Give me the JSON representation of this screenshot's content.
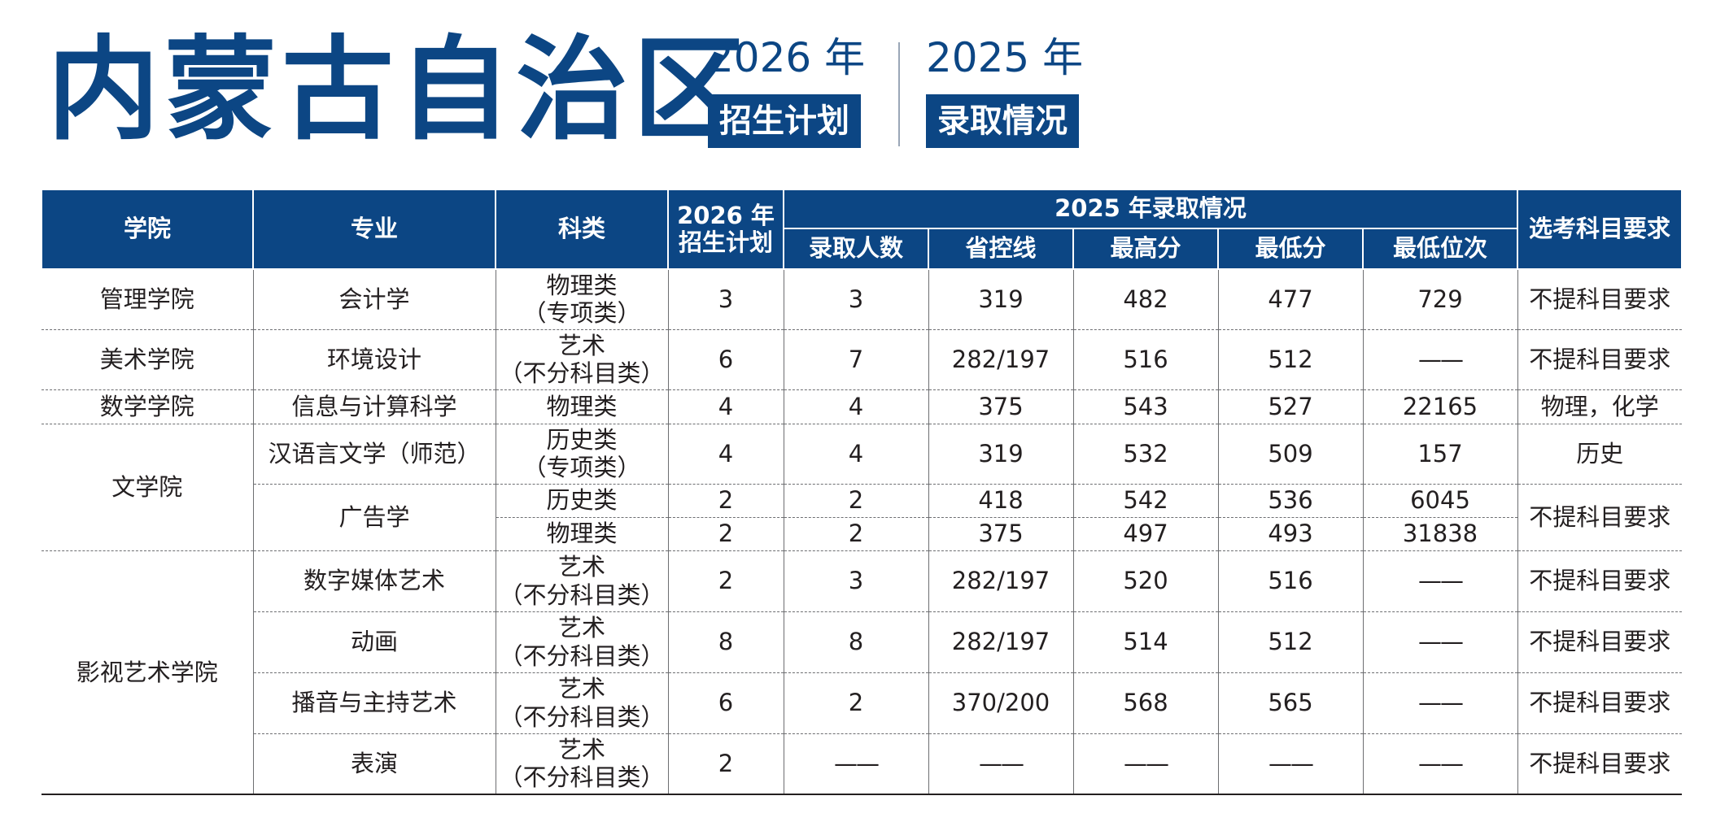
{
  "header": {
    "title": "内蒙古自治区",
    "plan_year": "2026 年",
    "plan_tag": "招生计划",
    "result_year": "2025 年",
    "result_tag": "录取情况"
  },
  "table": {
    "headers": {
      "college": "学院",
      "major": "专业",
      "category": "科类",
      "plan_line1": "2026 年",
      "plan_line2": "招生计划",
      "group": "2025 年录取情况",
      "admitted": "录取人数",
      "control_line": "省控线",
      "max_score": "最高分",
      "min_score": "最低分",
      "min_rank": "最低位次",
      "subject_req": "选考科目要求"
    },
    "colleges": [
      "管理学院",
      "美术学院",
      "数学学院",
      "文学院",
      "影视艺术学院"
    ],
    "majors": [
      "会计学",
      "环境设计",
      "信息与计算科学",
      "汉语言文学（师范）",
      "广告学",
      "数字媒体艺术",
      "动画",
      "播音与主持艺术",
      "表演"
    ],
    "rows": [
      {
        "cat1": "物理类",
        "cat2": "（专项类）",
        "plan": "3",
        "admitted": "3",
        "control": "319",
        "max": "482",
        "min": "477",
        "rank": "729",
        "req": "不提科目要求"
      },
      {
        "cat1": "艺术",
        "cat2": "（不分科目类）",
        "plan": "6",
        "admitted": "7",
        "control": "282/197",
        "max": "516",
        "min": "512",
        "rank": "——",
        "req": "不提科目要求"
      },
      {
        "cat1": "物理类",
        "cat2": "",
        "plan": "4",
        "admitted": "4",
        "control": "375",
        "max": "543",
        "min": "527",
        "rank": "22165",
        "req": "物理，化学"
      },
      {
        "cat1": "历史类",
        "cat2": "（专项类）",
        "plan": "4",
        "admitted": "4",
        "control": "319",
        "max": "532",
        "min": "509",
        "rank": "157",
        "req": "历史"
      },
      {
        "cat1": "历史类",
        "cat2": "",
        "plan": "2",
        "admitted": "2",
        "control": "418",
        "max": "542",
        "min": "536",
        "rank": "6045",
        "req": "不提科目要求"
      },
      {
        "cat1": "物理类",
        "cat2": "",
        "plan": "2",
        "admitted": "2",
        "control": "375",
        "max": "497",
        "min": "493",
        "rank": "31838",
        "req": ""
      },
      {
        "cat1": "艺术",
        "cat2": "（不分科目类）",
        "plan": "2",
        "admitted": "3",
        "control": "282/197",
        "max": "520",
        "min": "516",
        "rank": "——",
        "req": "不提科目要求"
      },
      {
        "cat1": "艺术",
        "cat2": "（不分科目类）",
        "plan": "8",
        "admitted": "8",
        "control": "282/197",
        "max": "514",
        "min": "512",
        "rank": "——",
        "req": "不提科目要求"
      },
      {
        "cat1": "艺术",
        "cat2": "（不分科目类）",
        "plan": "6",
        "admitted": "2",
        "control": "370/200",
        "max": "568",
        "min": "565",
        "rank": "——",
        "req": "不提科目要求"
      },
      {
        "cat1": "艺术",
        "cat2": "（不分科目类）",
        "plan": "2",
        "admitted": "——",
        "control": "——",
        "max": "——",
        "min": "——",
        "rank": "——",
        "req": "不提科目要求"
      }
    ]
  }
}
